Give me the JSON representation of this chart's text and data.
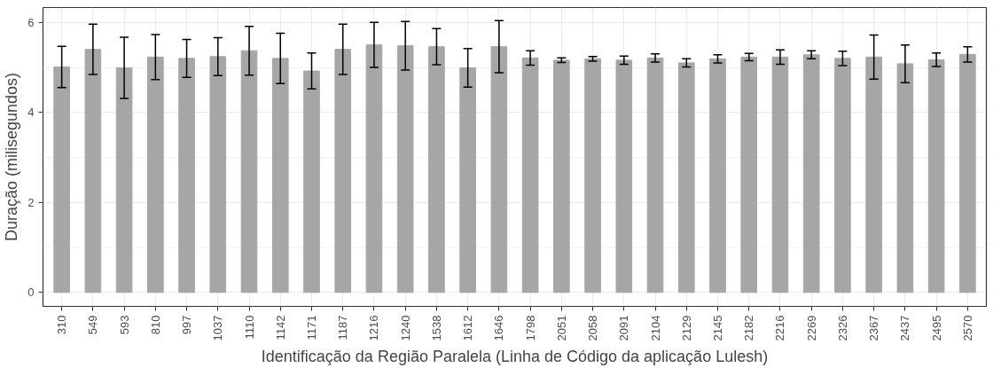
{
  "chart_data": {
    "type": "bar",
    "xlabel": "Identificação da Região Paralela (Linha de Código da aplicação Lulesh)",
    "ylabel": "Duração (milisegundos)",
    "categories": [
      "310",
      "549",
      "593",
      "810",
      "997",
      "1037",
      "1110",
      "1142",
      "1171",
      "1187",
      "1216",
      "1240",
      "1538",
      "1612",
      "1646",
      "1798",
      "2051",
      "2058",
      "2091",
      "2104",
      "2129",
      "2145",
      "2182",
      "2216",
      "2269",
      "2326",
      "2367",
      "2437",
      "2495",
      "2570"
    ],
    "values": [
      5.01,
      5.4,
      4.99,
      5.23,
      5.2,
      5.24,
      5.37,
      5.2,
      4.92,
      5.4,
      5.5,
      5.48,
      5.46,
      4.99,
      5.46,
      5.21,
      5.16,
      5.19,
      5.16,
      5.21,
      5.1,
      5.19,
      5.23,
      5.23,
      5.28,
      5.2,
      5.23,
      5.08,
      5.17,
      5.29
    ],
    "errors": [
      0.46,
      0.56,
      0.68,
      0.5,
      0.42,
      0.42,
      0.54,
      0.56,
      0.4,
      0.56,
      0.5,
      0.54,
      0.4,
      0.43,
      0.58,
      0.16,
      0.05,
      0.05,
      0.09,
      0.09,
      0.09,
      0.09,
      0.08,
      0.16,
      0.09,
      0.16,
      0.49,
      0.42,
      0.15,
      0.17
    ],
    "color": "#a6a6a6",
    "ylim": [
      -0.31,
      6.33
    ],
    "yticks": [
      0,
      2,
      4,
      6
    ],
    "grid": true
  }
}
